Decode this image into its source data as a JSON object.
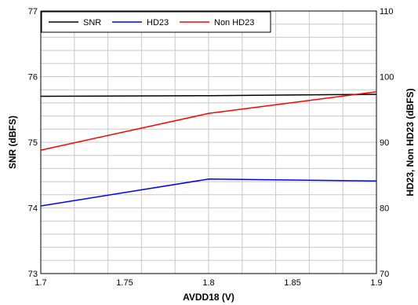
{
  "chart_data": {
    "type": "line",
    "title": "",
    "xlabel": "AVDD18 (V)",
    "ylabel_left": "SNR (dBFS)",
    "ylabel_right": "HD23, Non HD23 (dBFS)",
    "xlim": [
      1.7,
      1.9
    ],
    "ylim_left": [
      73,
      77
    ],
    "ylim_right": [
      70,
      110
    ],
    "x_ticks": [
      1.7,
      1.75,
      1.8,
      1.85,
      1.9
    ],
    "x_tick_labels": [
      "1.7",
      "1.75",
      "1.8",
      "1.85",
      "1.9"
    ],
    "y_left_ticks": [
      73,
      74,
      75,
      76,
      77
    ],
    "y_left_tick_labels": [
      "73",
      "74",
      "75",
      "76",
      "77"
    ],
    "y_right_ticks": [
      70,
      80,
      90,
      100,
      110
    ],
    "y_right_tick_labels": [
      "70",
      "80",
      "90",
      "100",
      "110"
    ],
    "grid": true,
    "legend_position": "top-left",
    "x": [
      1.7,
      1.8,
      1.9
    ],
    "series": [
      {
        "name": "SNR",
        "axis": "left",
        "color": "#000000",
        "values": [
          75.7,
          75.71,
          75.73
        ]
      },
      {
        "name": "HD23",
        "axis": "right",
        "color": "#0000ff",
        "values": [
          80.3,
          84.4,
          84.1
        ]
      },
      {
        "name": "Non HD23",
        "axis": "right",
        "color": "#ff0000",
        "values": [
          88.8,
          94.4,
          97.7
        ]
      }
    ]
  }
}
